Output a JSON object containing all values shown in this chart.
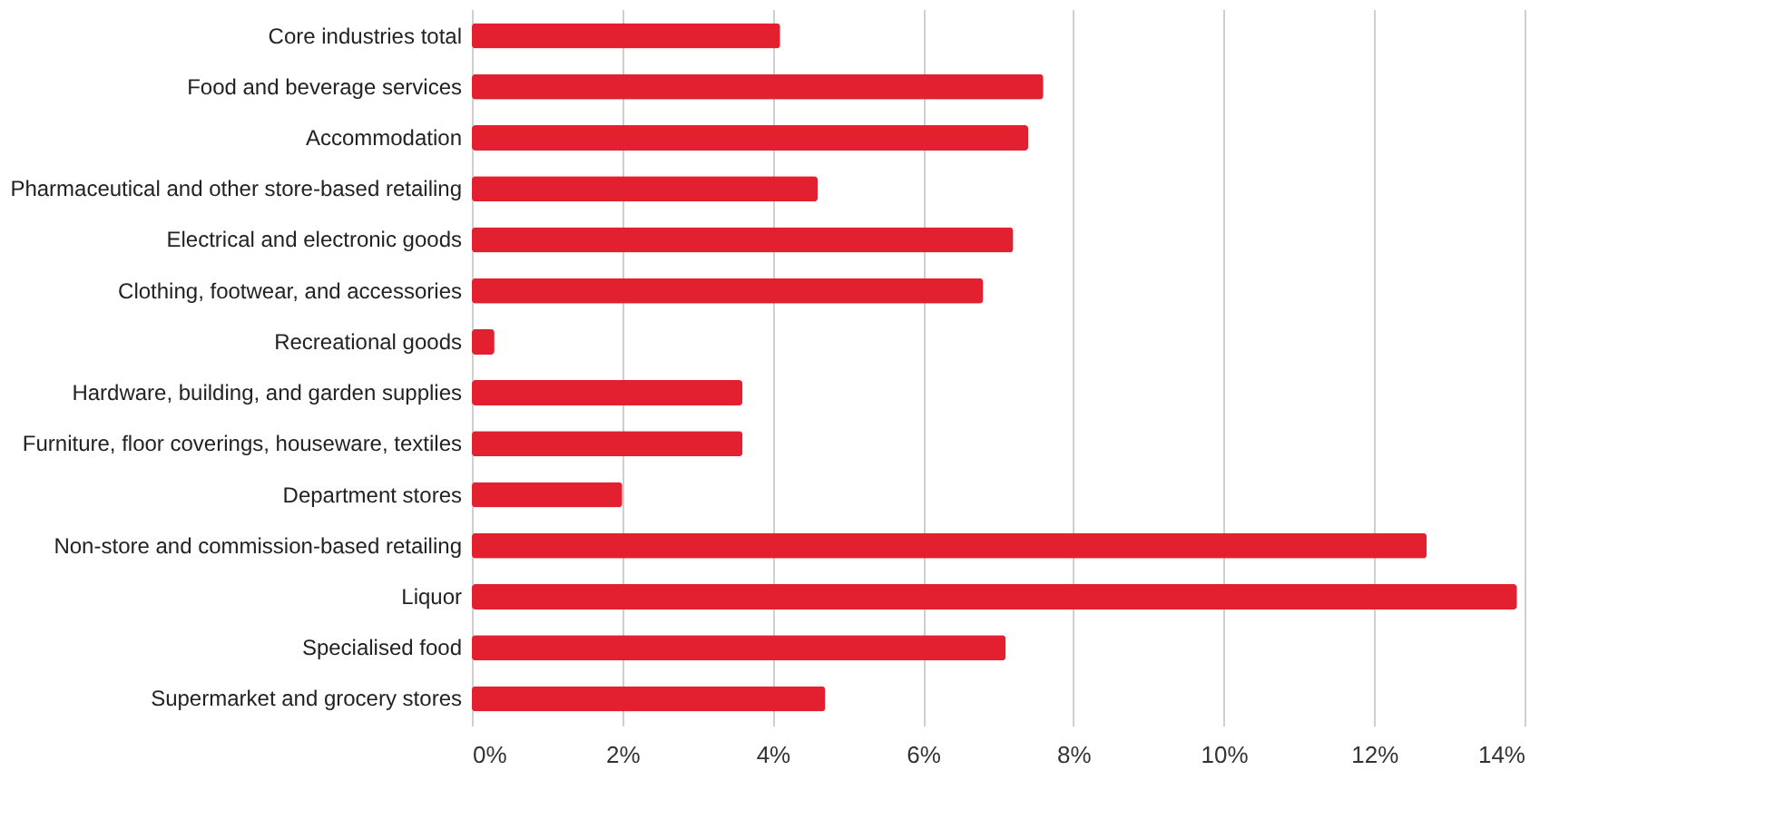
{
  "chart_data": {
    "type": "bar",
    "orientation": "horizontal",
    "categories": [
      "Core industries total",
      "Food and beverage services",
      "Accommodation",
      "Pharmaceutical and other store-based retailing",
      "Electrical and electronic goods",
      "Clothing, footwear, and accessories",
      "Recreational goods",
      "Hardware, building, and garden supplies",
      "Furniture, floor coverings, houseware, textiles",
      "Department stores",
      "Non-store and commission-based retailing",
      "Liquor",
      "Specialised food",
      "Supermarket and grocery stores"
    ],
    "values": [
      4.1,
      7.6,
      7.4,
      4.6,
      7.2,
      6.8,
      0.3,
      3.6,
      3.6,
      2.0,
      12.7,
      13.9,
      7.1,
      4.7
    ],
    "color": "#e2202f",
    "xlim": [
      0,
      14
    ],
    "xticks": [
      {
        "value": 0,
        "label": "0%"
      },
      {
        "value": 2,
        "label": "2%"
      },
      {
        "value": 4,
        "label": "4%"
      },
      {
        "value": 6,
        "label": "6%"
      },
      {
        "value": 8,
        "label": "8%"
      },
      {
        "value": 10,
        "label": "10%"
      },
      {
        "value": 12,
        "label": "12%"
      },
      {
        "value": 14,
        "label": "14%"
      }
    ],
    "grid": "x"
  }
}
